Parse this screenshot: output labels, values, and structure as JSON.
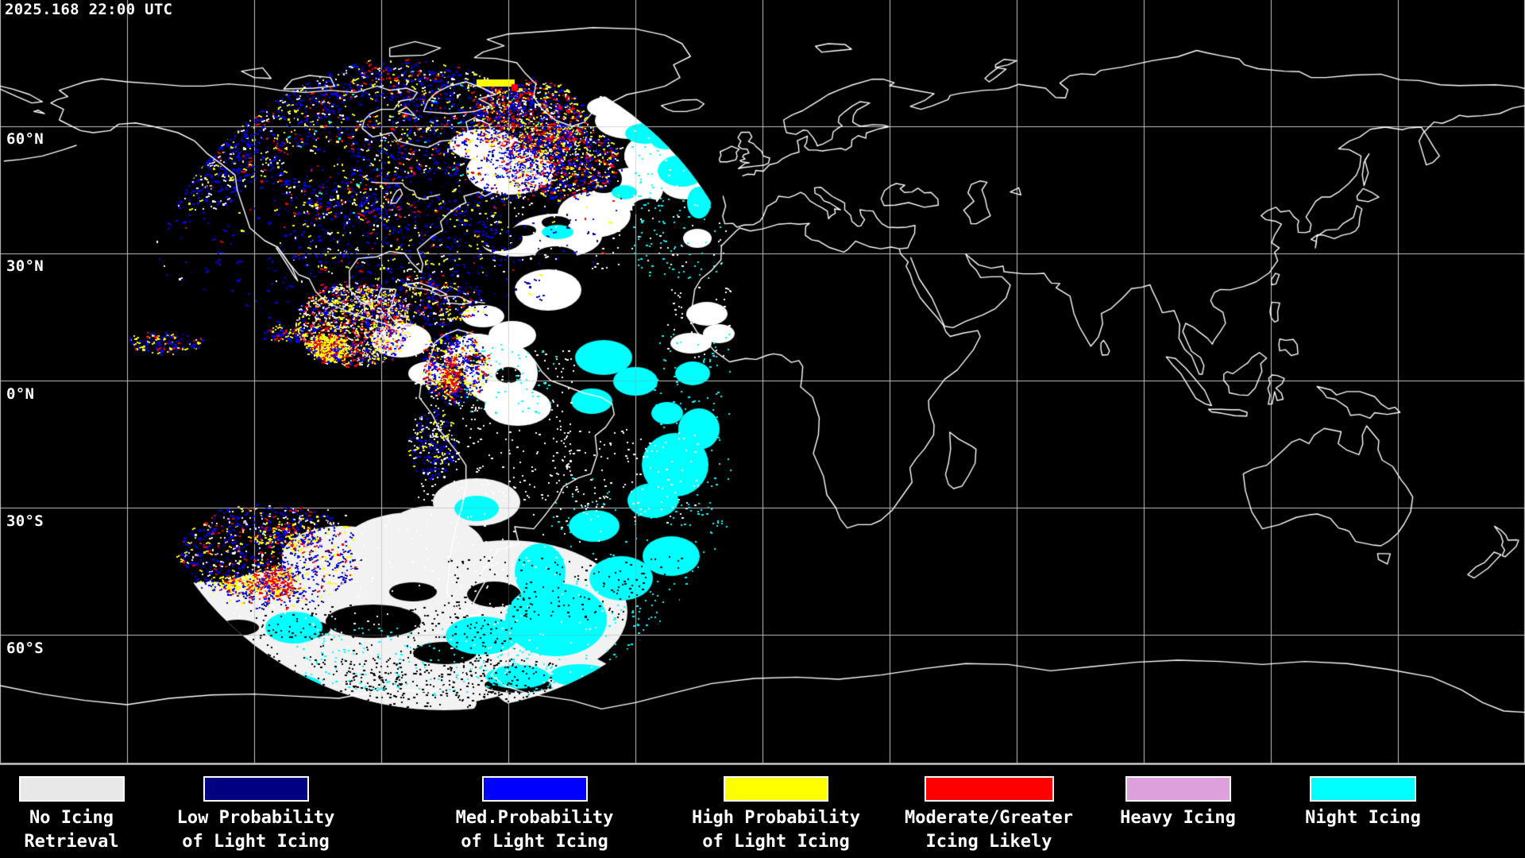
{
  "header": {
    "timestamp": "2025.168 22:00 UTC"
  },
  "map": {
    "lat_labels": [
      "60°N",
      "30°N",
      "0°N",
      "30°S",
      "60°S"
    ],
    "background": "#000000",
    "grid_color": "#f0f0f0",
    "coastline_color": "#ffffff",
    "border_color": "#ffffff"
  },
  "legend": {
    "items": [
      {
        "line1": "No Icing",
        "line2": "Retrieval",
        "color": "#e8e8e8"
      },
      {
        "line1": "Low Probability",
        "line2": "of Light Icing",
        "color": "#000080"
      },
      {
        "line1": "Med.Probability",
        "line2": "of Light Icing",
        "color": "#0000ff"
      },
      {
        "line1": "High Probability",
        "line2": "of Light Icing",
        "color": "#ffff00"
      },
      {
        "line1": "Moderate/Greater",
        "line2": "Icing Likely",
        "color": "#ff0000"
      },
      {
        "line1": "Heavy Icing",
        "line2": "",
        "color": "#dda0dd"
      },
      {
        "line1": "Night Icing",
        "line2": "",
        "color": "#00ffff"
      }
    ]
  },
  "palette": {
    "no_icing": "#e8e8e8",
    "low": "#000080",
    "med": "#0000ff",
    "high": "#ffff00",
    "moderate": "#ff0000",
    "heavy": "#dda0dd",
    "night": "#00ffff",
    "cloud_white": "#ffffff",
    "retrieval_fill": "#f2f2f2"
  }
}
